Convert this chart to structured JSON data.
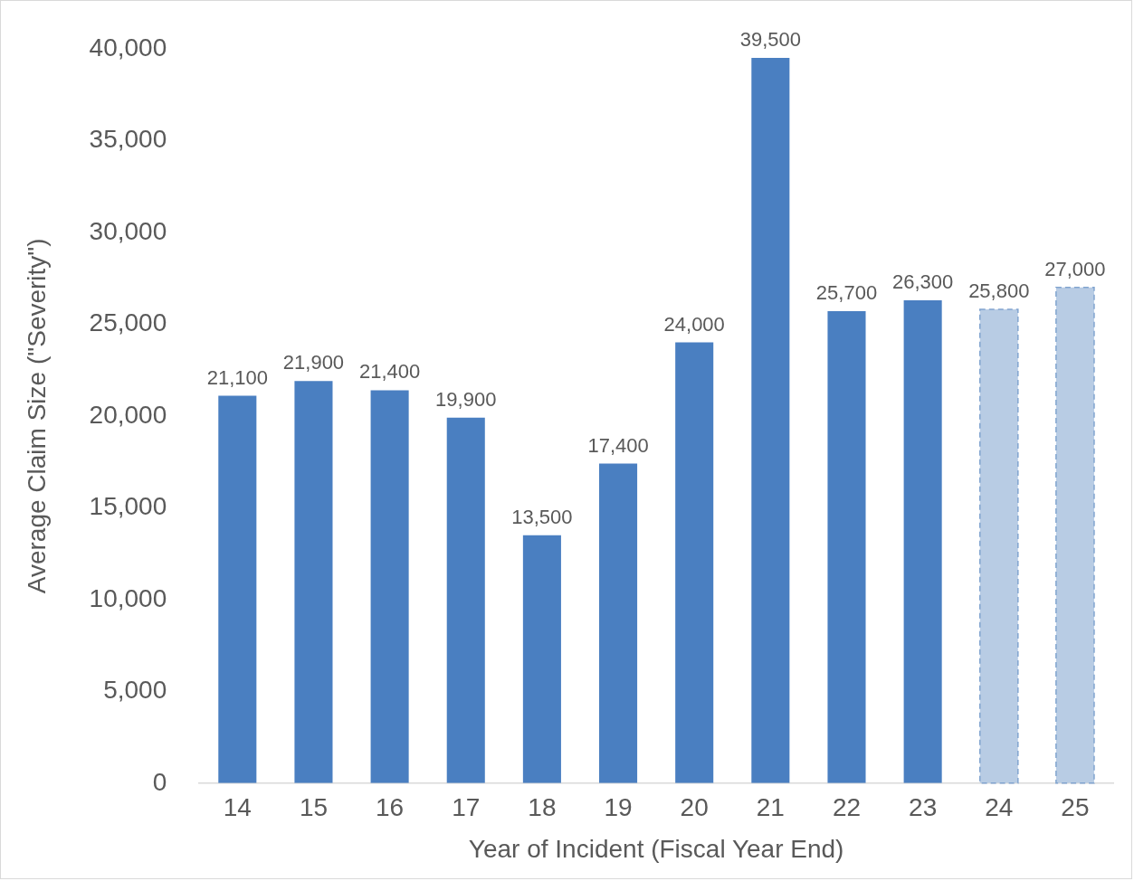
{
  "chart_data": {
    "type": "bar",
    "xlabel": "Year of Incident (Fiscal Year End)",
    "ylabel": "Average Claim Size (\"Severity\")",
    "categories": [
      "14",
      "15",
      "16",
      "17",
      "18",
      "19",
      "20",
      "21",
      "22",
      "23",
      "24",
      "25"
    ],
    "series": [
      {
        "color": "#4a7fc1",
        "values": [
          21100,
          21900,
          21400,
          19900,
          13500,
          17400,
          24000,
          39500,
          25700,
          26300,
          null,
          null
        ],
        "value_labels": [
          "21,100",
          "21,900",
          "21,400",
          "19,900",
          "13,500",
          "17,400",
          "24,000",
          "39,500",
          "25,700",
          "26,300",
          null,
          null
        ]
      },
      {
        "color": "#b8cce4",
        "line_style": "dashed",
        "values": [
          null,
          null,
          null,
          null,
          null,
          null,
          null,
          null,
          null,
          null,
          25800,
          27000
        ],
        "value_labels": [
          null,
          null,
          null,
          null,
          null,
          null,
          null,
          null,
          null,
          null,
          "25,800",
          "27,000"
        ]
      }
    ],
    "ylim": [
      0,
      40000
    ],
    "yticks": [
      0,
      {
        "value": 5000,
        "label": "5,000"
      },
      {
        "value": 10000,
        "label": "10,000"
      },
      {
        "value": 15000,
        "label": "15,000"
      },
      {
        "value": 20000,
        "label": "20,000"
      },
      {
        "value": 25000,
        "label": "25,000"
      },
      {
        "value": 30000,
        "label": "30,000"
      },
      {
        "value": 35000,
        "label": "35,000"
      },
      {
        "value": 40000,
        "label": "40,000"
      }
    ],
    "grid": false,
    "legend": false
  }
}
